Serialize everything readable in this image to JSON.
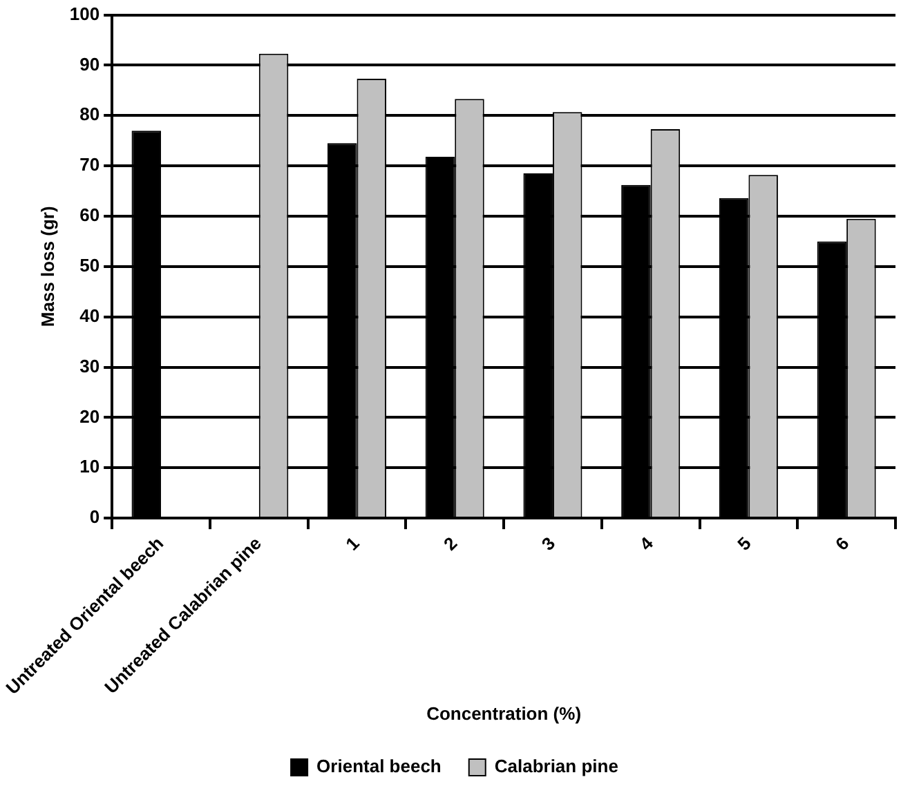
{
  "chart_data": {
    "type": "bar",
    "xlabel": "Concentration (%)",
    "ylabel": "Mass loss (gr)",
    "categories": [
      "Untreated Oriental beech",
      "Untreated Calabrian pine",
      "1",
      "2",
      "3",
      "4",
      "5",
      "6"
    ],
    "series": [
      {
        "name": "Oriental beech",
        "color": "#000000",
        "values": [
          77,
          null,
          74.5,
          71.8,
          68.5,
          66.2,
          63.6,
          55
        ]
      },
      {
        "name": "Calabrian pine",
        "color": "#c0c0c0",
        "values": [
          null,
          92.3,
          87.3,
          83.3,
          80.7,
          77.3,
          68.2,
          59.5
        ]
      }
    ],
    "ylim": [
      0,
      100
    ],
    "yticks": [
      0,
      10,
      20,
      30,
      40,
      50,
      60,
      70,
      80,
      90,
      100
    ],
    "grid": "y",
    "legend": "bottom"
  }
}
